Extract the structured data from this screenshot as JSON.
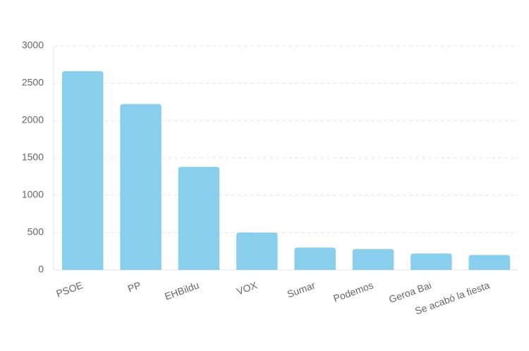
{
  "chart_data": {
    "type": "bar",
    "categories": [
      "PSOE",
      "PP",
      "EHBildu",
      "VOX",
      "Sumar",
      "Podemos",
      "Geroa Bai",
      "Se acabó la fiesta"
    ],
    "values": [
      2660,
      2220,
      1380,
      500,
      300,
      280,
      220,
      200
    ],
    "color": "#89ceec",
    "ylim": [
      0,
      3000
    ],
    "yticks": [
      0,
      500,
      1000,
      1500,
      2000,
      2500,
      3000
    ],
    "grid": true
  }
}
